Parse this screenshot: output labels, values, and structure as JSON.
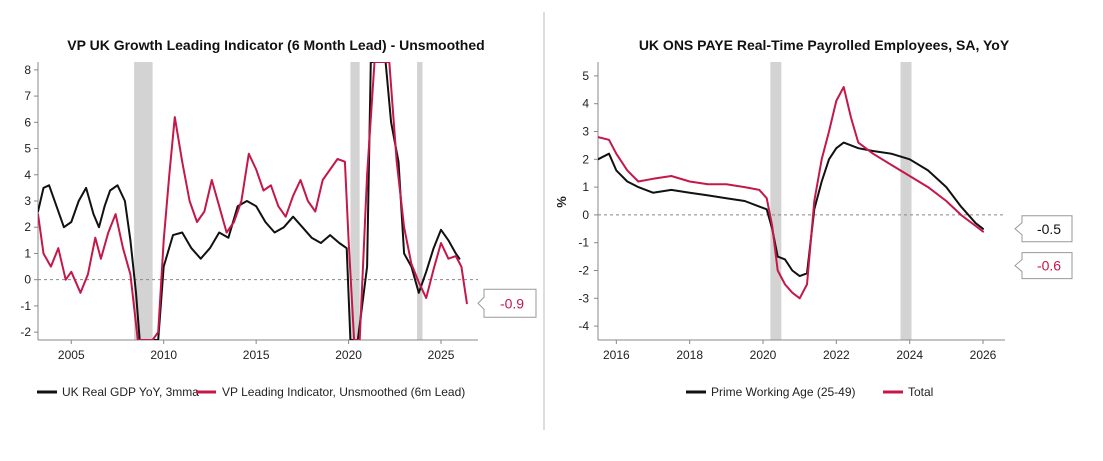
{
  "colors": {
    "black": "#111111",
    "red": "#c4184a",
    "recession": "#d3d3d3",
    "zero_line": "#888888",
    "divider": "#bbbbbb"
  },
  "chart_data": [
    {
      "type": "line",
      "title": "VP UK Growth Leading Indicator (6 Month Lead) - Unsmoothed",
      "xlabel": "",
      "ylabel": "",
      "xlim": [
        2003.2,
        2027.0
      ],
      "ylim": [
        -2.3,
        8.3
      ],
      "xticks": [
        2005,
        2010,
        2015,
        2020,
        2025
      ],
      "xtick_labels": [
        "2005",
        "2010",
        "2015",
        "2020",
        "2025"
      ],
      "yticks": [
        -2,
        -1,
        0,
        1,
        2,
        3,
        4,
        5,
        6,
        7,
        8
      ],
      "ytick_labels": [
        "-2",
        "-1",
        "0",
        "1",
        "2",
        "3",
        "4",
        "5",
        "6",
        "7",
        "8"
      ],
      "grid": false,
      "zero_line": true,
      "legend_position": "bottom",
      "shaded_periods": [
        [
          2008.4,
          2009.4
        ],
        [
          2020.1,
          2020.6
        ],
        [
          2023.7,
          2024.0
        ]
      ],
      "callouts": [
        {
          "text": "-0.9",
          "value": -0.9,
          "series": 1
        }
      ],
      "series": [
        {
          "name": "UK Real GDP YoY, 3mma",
          "color": "#111111",
          "x": [
            2003.2,
            2003.5,
            2003.8,
            2004.2,
            2004.6,
            2005.0,
            2005.4,
            2005.8,
            2006.2,
            2006.5,
            2006.8,
            2007.1,
            2007.5,
            2007.9,
            2008.2,
            2008.5,
            2008.7,
            2009.0,
            2009.3,
            2009.7,
            2010.0,
            2010.5,
            2011.0,
            2011.5,
            2012.0,
            2012.5,
            2013.0,
            2013.5,
            2014.0,
            2014.5,
            2015.0,
            2015.5,
            2016.0,
            2016.5,
            2017.0,
            2017.5,
            2018.0,
            2018.5,
            2019.0,
            2019.5,
            2019.9,
            2020.1,
            2020.5,
            2021.0,
            2021.2,
            2021.6,
            2022.0,
            2022.3,
            2022.7,
            2023.0,
            2023.4,
            2023.8,
            2024.2,
            2024.6,
            2025.0,
            2025.4,
            2025.8,
            2026.0
          ],
          "y": [
            2.6,
            3.5,
            3.6,
            2.8,
            2.0,
            2.2,
            3.0,
            3.5,
            2.5,
            2.0,
            2.8,
            3.4,
            3.6,
            3.0,
            1.5,
            -0.5,
            -2.3,
            -2.3,
            -2.3,
            -2.3,
            0.5,
            1.7,
            1.8,
            1.2,
            0.8,
            1.2,
            1.8,
            1.6,
            2.8,
            3.0,
            2.8,
            2.2,
            1.8,
            2.0,
            2.4,
            2.0,
            1.6,
            1.4,
            1.7,
            1.4,
            1.2,
            -2.3,
            -2.3,
            0.5,
            8.3,
            8.3,
            8.3,
            6.0,
            4.5,
            1.0,
            0.5,
            -0.5,
            0.3,
            1.2,
            1.9,
            1.5,
            1.0,
            0.8
          ]
        },
        {
          "name": "VP Leading Indicator, Unsmoothed (6m Lead)",
          "color": "#c4184a",
          "x": [
            2003.2,
            2003.5,
            2003.9,
            2004.3,
            2004.7,
            2005.0,
            2005.5,
            2005.9,
            2006.3,
            2006.6,
            2007.0,
            2007.4,
            2007.8,
            2008.2,
            2008.6,
            2009.0,
            2009.4,
            2009.7,
            2010.0,
            2010.3,
            2010.6,
            2011.0,
            2011.4,
            2011.8,
            2012.2,
            2012.6,
            2013.0,
            2013.4,
            2013.8,
            2014.2,
            2014.6,
            2015.0,
            2015.4,
            2015.8,
            2016.2,
            2016.6,
            2017.0,
            2017.4,
            2017.8,
            2018.2,
            2018.6,
            2019.0,
            2019.4,
            2019.8,
            2020.0,
            2020.3,
            2020.6,
            2021.0,
            2021.4,
            2021.8,
            2022.2,
            2022.6,
            2023.0,
            2023.4,
            2023.8,
            2024.2,
            2024.6,
            2025.0,
            2025.4,
            2025.8,
            2026.1,
            2026.4
          ],
          "y": [
            2.5,
            1.0,
            0.5,
            1.2,
            0.0,
            0.3,
            -0.5,
            0.2,
            1.6,
            0.8,
            1.8,
            2.5,
            1.2,
            0.2,
            -2.3,
            -2.3,
            -2.3,
            -2.0,
            1.5,
            4.0,
            6.2,
            4.5,
            3.0,
            2.2,
            2.6,
            3.8,
            2.8,
            1.8,
            2.2,
            3.0,
            4.8,
            4.2,
            3.4,
            3.6,
            2.8,
            2.4,
            3.2,
            3.8,
            3.0,
            2.6,
            3.8,
            4.2,
            4.6,
            4.5,
            1.5,
            -2.3,
            -2.3,
            4.0,
            8.3,
            8.3,
            8.3,
            4.5,
            2.0,
            0.6,
            -0.1,
            -0.7,
            0.4,
            1.4,
            0.8,
            0.9,
            0.5,
            -0.9
          ]
        }
      ]
    },
    {
      "type": "line",
      "title": "UK ONS PAYE Real-Time Payrolled Employees, SA, YoY",
      "xlabel": "",
      "ylabel": "%",
      "xlim": [
        2015.5,
        2026.6
      ],
      "ylim": [
        -4.5,
        5.5
      ],
      "xticks": [
        2016,
        2018,
        2020,
        2022,
        2024,
        2026
      ],
      "xtick_labels": [
        "2016",
        "2018",
        "2020",
        "2022",
        "2024",
        "2026"
      ],
      "yticks": [
        -4,
        -3,
        -2,
        -1,
        0,
        1,
        2,
        3,
        4,
        5
      ],
      "ytick_labels": [
        "-4",
        "-3",
        "-2",
        "-1",
        "0",
        "1",
        "2",
        "3",
        "4",
        "5"
      ],
      "grid": false,
      "zero_line": true,
      "legend_position": "bottom",
      "shaded_periods": [
        [
          2020.2,
          2020.5
        ],
        [
          2023.75,
          2024.05
        ]
      ],
      "callouts": [
        {
          "text": "-0.5",
          "value": -0.5,
          "series": 0
        },
        {
          "text": "-0.6",
          "value": -0.6,
          "series": 1
        }
      ],
      "series": [
        {
          "name": "Prime Working Age (25-49)",
          "color": "#111111",
          "x": [
            2015.5,
            2015.8,
            2016.0,
            2016.3,
            2016.6,
            2017.0,
            2017.5,
            2018.0,
            2018.5,
            2019.0,
            2019.5,
            2019.9,
            2020.1,
            2020.25,
            2020.4,
            2020.6,
            2020.8,
            2021.0,
            2021.2,
            2021.4,
            2021.6,
            2021.8,
            2022.0,
            2022.2,
            2022.6,
            2023.0,
            2023.5,
            2024.0,
            2024.5,
            2025.0,
            2025.4,
            2025.8,
            2026.0
          ],
          "y": [
            2.0,
            2.2,
            1.6,
            1.2,
            1.0,
            0.8,
            0.9,
            0.8,
            0.7,
            0.6,
            0.5,
            0.3,
            0.2,
            -0.5,
            -1.5,
            -1.6,
            -2.0,
            -2.2,
            -2.1,
            0.2,
            1.2,
            2.0,
            2.4,
            2.6,
            2.4,
            2.3,
            2.2,
            2.0,
            1.6,
            1.0,
            0.3,
            -0.3,
            -0.5
          ]
        },
        {
          "name": "Total",
          "color": "#c4184a",
          "x": [
            2015.5,
            2015.8,
            2016.0,
            2016.3,
            2016.6,
            2017.0,
            2017.5,
            2018.0,
            2018.5,
            2019.0,
            2019.5,
            2019.9,
            2020.1,
            2020.25,
            2020.4,
            2020.6,
            2020.8,
            2021.0,
            2021.2,
            2021.4,
            2021.6,
            2021.8,
            2022.0,
            2022.2,
            2022.4,
            2022.6,
            2023.0,
            2023.5,
            2024.0,
            2024.5,
            2025.0,
            2025.4,
            2025.8,
            2026.0
          ],
          "y": [
            2.8,
            2.7,
            2.2,
            1.6,
            1.2,
            1.3,
            1.4,
            1.2,
            1.1,
            1.1,
            1.0,
            0.9,
            0.6,
            -0.4,
            -2.0,
            -2.5,
            -2.8,
            -3.0,
            -2.5,
            0.5,
            2.0,
            3.0,
            4.1,
            4.6,
            3.5,
            2.6,
            2.2,
            1.8,
            1.4,
            1.0,
            0.5,
            0.0,
            -0.4,
            -0.6
          ]
        }
      ]
    }
  ]
}
